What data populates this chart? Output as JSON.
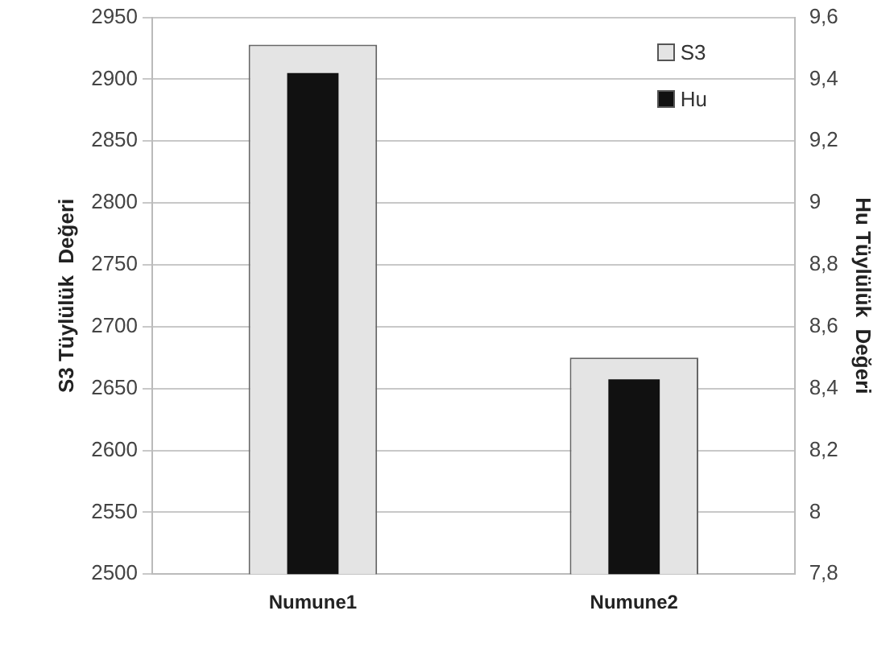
{
  "chart_data": {
    "type": "bar",
    "categories": [
      "Numune1",
      "Numune2"
    ],
    "ylabel": "S3 Tüylülük  Değeri",
    "y2label": "Hu Tüylülük  Değeri",
    "series": [
      {
        "name": "S3",
        "color": "#e4e4e4",
        "values": [
          2928,
          2675
        ]
      },
      {
        "name": "Hu",
        "color": "#111111",
        "values": [
          9.42,
          8.43
        ],
        "axis": "y2"
      }
    ],
    "ylim": [
      2500,
      2950
    ],
    "yticks": [
      2500,
      2550,
      2600,
      2650,
      2700,
      2750,
      2800,
      2850,
      2900,
      2950
    ],
    "y2lim": [
      7.8,
      9.6
    ],
    "y2ticks": [
      {
        "value": 7.8,
        "label": "7,8"
      },
      {
        "value": 8,
        "label": "8"
      },
      {
        "value": 8.2,
        "label": "8,2"
      },
      {
        "value": 8.4,
        "label": "8,4"
      },
      {
        "value": 8.6,
        "label": "8,6"
      },
      {
        "value": 8.8,
        "label": "8,8"
      },
      {
        "value": 9,
        "label": "9"
      },
      {
        "value": 9.2,
        "label": "9,2"
      },
      {
        "value": 9.4,
        "label": "9,4"
      },
      {
        "value": 9.6,
        "label": "9,6"
      }
    ],
    "grid": "y",
    "legend": "top right"
  }
}
